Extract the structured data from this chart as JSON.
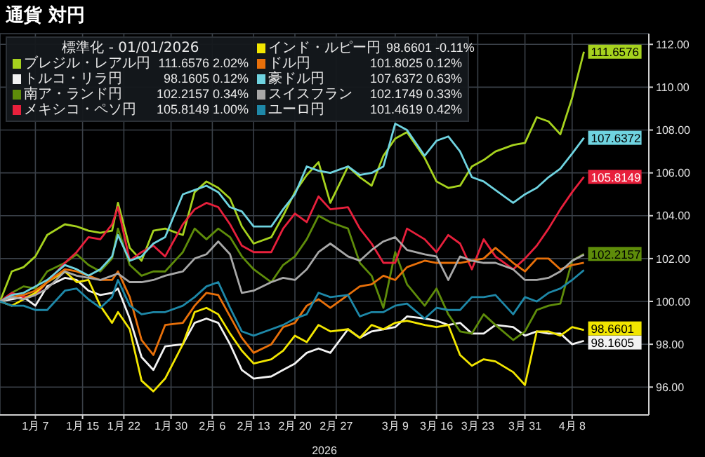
{
  "chart_data": {
    "type": "line",
    "title": "通貨 対円",
    "xlabel": "2026",
    "legend_title": "標準化 - 01/01/2026",
    "legend": "top left",
    "grid": true,
    "x": [
      "2026-01-01",
      "2026-01-03",
      "2026-01-05",
      "2026-01-07",
      "2026-01-09",
      "2026-01-12",
      "2026-01-14",
      "2026-01-16",
      "2026-01-18",
      "2026-01-20",
      "2026-01-21",
      "2026-01-23",
      "2026-01-25",
      "2026-01-27",
      "2026-01-29",
      "2026-02-01",
      "2026-02-03",
      "2026-02-05",
      "2026-02-07",
      "2026-02-09",
      "2026-02-11",
      "2026-02-13",
      "2026-02-16",
      "2026-02-18",
      "2026-02-20",
      "2026-02-22",
      "2026-02-24",
      "2026-02-26",
      "2026-03-01",
      "2026-03-03",
      "2026-03-05",
      "2026-03-07",
      "2026-03-09",
      "2026-03-11",
      "2026-03-14",
      "2026-03-16",
      "2026-03-18",
      "2026-03-20",
      "2026-03-22",
      "2026-03-24",
      "2026-03-26",
      "2026-03-29",
      "2026-03-31",
      "2026-04-02",
      "2026-04-04",
      "2026-04-06",
      "2026-04-08",
      "2026-04-10"
    ],
    "xlim": [
      "2026-01-01",
      "2026-04-21"
    ],
    "xticks": [
      {
        "value": "2026-01-07",
        "label": "1月 7"
      },
      {
        "value": "2026-01-15",
        "label": "1月 15"
      },
      {
        "value": "2026-01-22",
        "label": "1月 22"
      },
      {
        "value": "2026-01-30",
        "label": "1月 30"
      },
      {
        "value": "2026-02-06",
        "label": "2月 6"
      },
      {
        "value": "2026-02-13",
        "label": "2月 13"
      },
      {
        "value": "2026-02-20",
        "label": "2月 20"
      },
      {
        "value": "2026-02-27",
        "label": "2月 27"
      },
      {
        "value": "2026-03-09",
        "label": "3月 9"
      },
      {
        "value": "2026-03-16",
        "label": "3月 16"
      },
      {
        "value": "2026-03-23",
        "label": "3月 23"
      },
      {
        "value": "2026-03-31",
        "label": "3月 31"
      },
      {
        "value": "2026-04-08",
        "label": "4月 8"
      }
    ],
    "ylim": [
      94.7,
      112.5
    ],
    "yticks": [
      {
        "value": 96,
        "label": "96.00"
      },
      {
        "value": 98,
        "label": "98.00"
      },
      {
        "value": 100,
        "label": "100.00"
      },
      {
        "value": 102,
        "label": "102.00"
      },
      {
        "value": 104,
        "label": "104.00"
      },
      {
        "value": 106,
        "label": "106.00"
      },
      {
        "value": 108,
        "label": "108.00"
      },
      {
        "value": 110,
        "label": "110.00"
      },
      {
        "value": 112,
        "label": "112.00"
      }
    ],
    "annotations": [
      "111.6576 2.02%",
      "98.1605 0.12%",
      "102.2157 0.34%",
      "105.8149 1.00%",
      "98.6601 -0.11%",
      "101.8025 0.12%",
      "107.6372 0.63%",
      "102.1749 0.33%",
      "101.4619 0.42%"
    ],
    "series": [
      {
        "name": "ブレジル・レアル円",
        "color": "#a6d21e",
        "values": [
          100,
          101.4,
          101.6,
          102.1,
          103.1,
          103.6,
          103.5,
          103.3,
          103.2,
          103.3,
          104.6,
          102.5,
          101.9,
          103.3,
          103.4,
          103.1,
          105.1,
          105.6,
          105.3,
          104.8,
          103.5,
          102.7,
          103.0,
          104.0,
          105.1,
          105.9,
          106.5,
          104.6,
          106.3,
          105.8,
          105.4,
          106.8,
          107.6,
          107.9,
          106.7,
          105.6,
          105.3,
          105.4,
          106.3,
          106.6,
          107.0,
          107.3,
          107.4,
          108.6,
          108.4,
          107.8,
          109.5,
          111.6576
        ],
        "value_labels": [
          null,
          null,
          null,
          null,
          null,
          null,
          null,
          null,
          null,
          null,
          null,
          null,
          null,
          null,
          null,
          null,
          null,
          null,
          null,
          null,
          null,
          null,
          null,
          null,
          null,
          null,
          null,
          null,
          null,
          null,
          null,
          null,
          null,
          null,
          null,
          null,
          null,
          null,
          null,
          null,
          null,
          null,
          null,
          null,
          null,
          null,
          null,
          "111.6576"
        ]
      },
      {
        "name": "トルコ・リラ円",
        "color": "#f2f2f2",
        "values": [
          100,
          100.1,
          100.2,
          99.8,
          100.7,
          101.1,
          101.0,
          100.5,
          100.3,
          100.4,
          100.6,
          99.2,
          97.4,
          96.8,
          97.9,
          98.0,
          99.0,
          99.2,
          99.0,
          98.0,
          96.8,
          96.4,
          96.5,
          96.8,
          97.1,
          97.6,
          97.8,
          97.6,
          98.7,
          98.3,
          98.6,
          98.7,
          98.8,
          99.3,
          99.2,
          99.1,
          98.9,
          99.0,
          98.5,
          98.5,
          98.9,
          98.8,
          98.4,
          98.6,
          98.5,
          98.5,
          98.0,
          98.1605
        ],
        "value_labels": [
          null,
          null,
          null,
          null,
          null,
          null,
          null,
          null,
          null,
          null,
          null,
          null,
          null,
          null,
          null,
          null,
          null,
          null,
          null,
          null,
          null,
          null,
          null,
          null,
          null,
          null,
          null,
          null,
          null,
          null,
          null,
          null,
          null,
          null,
          null,
          null,
          null,
          null,
          null,
          null,
          null,
          null,
          null,
          null,
          null,
          null,
          null,
          "98.1605"
        ]
      },
      {
        "name": "南ア・ランド円",
        "color": "#5e8c0a",
        "values": [
          100,
          100.4,
          100.7,
          100.6,
          101.4,
          101.8,
          102.2,
          101.7,
          101.4,
          102.0,
          103.4,
          101.7,
          101.2,
          101.4,
          101.4,
          102.3,
          103.4,
          102.9,
          103.4,
          103.0,
          102.1,
          101.5,
          100.9,
          101.7,
          102.1,
          102.9,
          104.0,
          103.7,
          103.4,
          101.8,
          101.2,
          99.7,
          102.3,
          100.8,
          99.8,
          100.6,
          99.4,
          98.6,
          98.5,
          99.4,
          98.9,
          98.2,
          98.6,
          99.6,
          99.8,
          99.9,
          101.9,
          102.2157
        ],
        "value_labels": [
          null,
          null,
          null,
          null,
          null,
          null,
          null,
          null,
          null,
          null,
          null,
          null,
          null,
          null,
          null,
          null,
          null,
          null,
          null,
          null,
          null,
          null,
          null,
          null,
          null,
          null,
          null,
          null,
          null,
          null,
          null,
          null,
          null,
          null,
          null,
          null,
          null,
          null,
          null,
          null,
          null,
          null,
          null,
          null,
          null,
          null,
          null,
          "102.2157"
        ]
      },
      {
        "name": "メキシコ・ペソ円",
        "color": "#e8203c",
        "values": [
          100,
          100.4,
          100.2,
          100.3,
          100.9,
          101.8,
          102.3,
          103.0,
          102.9,
          103.6,
          104.4,
          101.9,
          102.3,
          102.6,
          102.1,
          103.6,
          104.3,
          104.6,
          104.4,
          103.6,
          102.6,
          102.3,
          102.3,
          103.4,
          104.1,
          103.7,
          104.9,
          104.3,
          104.4,
          103.4,
          102.7,
          101.8,
          101.8,
          103.4,
          102.9,
          102.3,
          103.1,
          102.7,
          101.5,
          102.9,
          102.1,
          101.5,
          102.0,
          102.6,
          103.4,
          104.3,
          105.1,
          105.8149
        ],
        "value_labels": [
          null,
          null,
          null,
          null,
          null,
          null,
          null,
          null,
          null,
          null,
          null,
          null,
          null,
          null,
          null,
          null,
          null,
          null,
          null,
          null,
          null,
          null,
          null,
          null,
          null,
          null,
          null,
          null,
          null,
          null,
          null,
          null,
          null,
          null,
          null,
          null,
          null,
          null,
          null,
          null,
          null,
          null,
          null,
          null,
          null,
          null,
          null,
          "105.8149"
        ]
      },
      {
        "name": "インド・ルピー円",
        "color": "#f2e600",
        "values": [
          100,
          99.8,
          100.1,
          100.4,
          100.9,
          101.4,
          100.9,
          101.0,
          99.8,
          99.0,
          99.5,
          98.7,
          96.3,
          95.8,
          96.4,
          98.0,
          99.5,
          99.7,
          99.4,
          98.5,
          97.7,
          97.1,
          97.3,
          97.7,
          98.4,
          98.1,
          98.9,
          98.6,
          98.7,
          98.3,
          98.9,
          98.7,
          99.0,
          99.1,
          98.9,
          98.8,
          98.9,
          97.5,
          97.0,
          97.3,
          97.2,
          96.7,
          96.1,
          98.6,
          98.6,
          98.4,
          98.8,
          98.6601
        ],
        "value_labels": [
          null,
          null,
          null,
          null,
          null,
          null,
          null,
          null,
          null,
          null,
          null,
          null,
          null,
          null,
          null,
          null,
          null,
          null,
          null,
          null,
          null,
          null,
          null,
          null,
          null,
          null,
          null,
          null,
          null,
          null,
          null,
          null,
          null,
          null,
          null,
          null,
          null,
          null,
          null,
          null,
          null,
          null,
          null,
          null,
          null,
          null,
          null,
          "98.6601"
        ]
      },
      {
        "name": "ドル円",
        "color": "#e8700a",
        "values": [
          100,
          100.2,
          100.3,
          100.5,
          100.9,
          101.5,
          101.4,
          101.2,
          101.0,
          101.0,
          101.4,
          100.2,
          98.2,
          97.5,
          98.9,
          99.0,
          99.8,
          100.4,
          100.3,
          99.3,
          98.3,
          97.6,
          98.0,
          98.8,
          99.0,
          99.8,
          100.1,
          99.7,
          100.3,
          100.7,
          100.8,
          101.2,
          101.0,
          101.6,
          101.9,
          101.8,
          101.8,
          101.8,
          101.9,
          102.0,
          102.5,
          101.8,
          101.4,
          102.0,
          102.0,
          101.5,
          101.7,
          101.8025
        ],
        "value_labels": [
          null,
          null,
          null,
          null,
          null,
          null,
          null,
          null,
          null,
          null,
          null,
          null,
          null,
          null,
          null,
          null,
          null,
          null,
          null,
          null,
          null,
          null,
          null,
          null,
          null,
          null,
          null,
          null,
          null,
          null,
          null,
          null,
          null,
          null,
          null,
          null,
          null,
          null,
          null,
          null,
          null,
          null,
          null,
          null,
          null,
          null,
          null,
          null
        ]
      },
      {
        "name": "豪ドル円",
        "color": "#6fd3e0",
        "values": [
          100,
          100.3,
          100.4,
          100.7,
          101.0,
          101.7,
          101.5,
          101.2,
          101.5,
          102.1,
          103.1,
          101.9,
          102.1,
          102.7,
          103.0,
          105.0,
          105.2,
          105.4,
          105.1,
          104.4,
          104.2,
          103.5,
          103.5,
          104.3,
          105.0,
          106.3,
          106.1,
          106.0,
          106.3,
          105.9,
          106.0,
          106.3,
          108.3,
          108.0,
          106.8,
          107.5,
          107.7,
          107.0,
          105.8,
          105.6,
          105.2,
          104.6,
          105.0,
          105.3,
          105.8,
          106.2,
          106.9,
          107.6372
        ],
        "value_labels": [
          null,
          null,
          null,
          null,
          null,
          null,
          null,
          null,
          null,
          null,
          null,
          null,
          null,
          null,
          null,
          null,
          null,
          null,
          null,
          null,
          null,
          null,
          null,
          null,
          null,
          null,
          null,
          null,
          null,
          null,
          null,
          null,
          null,
          null,
          null,
          null,
          null,
          null,
          null,
          null,
          null,
          null,
          null,
          null,
          null,
          null,
          null,
          "107.6372"
        ]
      },
      {
        "name": "スイスフラン",
        "color": "#a8a8a8",
        "values": [
          100,
          100.2,
          100.1,
          100.3,
          100.6,
          101.4,
          101.2,
          101.1,
          101.0,
          101.2,
          101.3,
          100.9,
          100.9,
          101.0,
          101.2,
          101.4,
          102.0,
          102.2,
          102.8,
          102.2,
          100.4,
          100.5,
          100.9,
          101.1,
          101.0,
          101.5,
          102.3,
          102.7,
          102.1,
          101.9,
          102.4,
          102.8,
          103.0,
          102.4,
          102.2,
          102.1,
          101.0,
          102.1,
          101.9,
          101.8,
          101.8,
          101.5,
          101.0,
          101.0,
          101.1,
          101.4,
          101.9,
          102.1749
        ],
        "value_labels": [
          null,
          null,
          null,
          null,
          null,
          null,
          null,
          null,
          null,
          null,
          null,
          null,
          null,
          null,
          null,
          null,
          null,
          null,
          null,
          null,
          null,
          null,
          null,
          null,
          null,
          null,
          null,
          null,
          null,
          null,
          null,
          null,
          null,
          null,
          null,
          null,
          null,
          null,
          null,
          null,
          null,
          null,
          null,
          null,
          null,
          null,
          null,
          null
        ]
      },
      {
        "name": "ユーロ円",
        "color": "#1e88a8",
        "values": [
          100,
          99.8,
          99.8,
          99.6,
          99.6,
          100.5,
          100.6,
          100.1,
          99.7,
          100.2,
          101.0,
          99.8,
          99.4,
          99.5,
          99.5,
          99.8,
          100.2,
          100.7,
          100.9,
          99.7,
          98.6,
          98.4,
          98.7,
          98.9,
          99.2,
          99.4,
          100.4,
          100.2,
          100.3,
          99.3,
          99.5,
          99.5,
          99.8,
          99.9,
          99.2,
          99.7,
          99.6,
          99.6,
          100.2,
          100.2,
          100.3,
          99.4,
          100.2,
          100.0,
          100.4,
          100.6,
          101.0,
          101.4619
        ],
        "value_labels": [
          null,
          null,
          null,
          null,
          null,
          null,
          null,
          null,
          null,
          null,
          null,
          null,
          null,
          null,
          null,
          null,
          null,
          null,
          null,
          null,
          null,
          null,
          null,
          null,
          null,
          null,
          null,
          null,
          null,
          null,
          null,
          null,
          null,
          null,
          null,
          null,
          null,
          null,
          null,
          null,
          null,
          null,
          null,
          null,
          null,
          null,
          null,
          null
        ]
      }
    ]
  }
}
